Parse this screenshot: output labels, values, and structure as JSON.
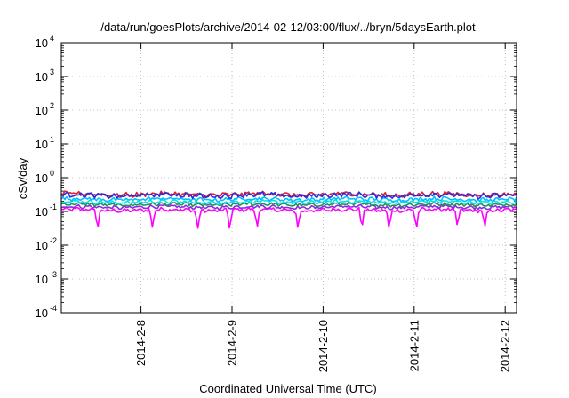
{
  "chart_data": {
    "type": "line",
    "title": "/data/run/goesPlots/archive/2014-02-12/03:00/flux/../bryn/5daysEarth.plot",
    "xlabel": "Coordinated Universal Time (UTC)",
    "ylabel": "cSv/day",
    "y_scale": "log",
    "ylim": [
      0.0001,
      10000
    ],
    "xlim": [
      "2014-02-07 03:00",
      "2014-02-12 03:00"
    ],
    "y_ticks": [
      {
        "value": 0.0001,
        "base": "10",
        "exp": "-4"
      },
      {
        "value": 0.001,
        "base": "10",
        "exp": "-3"
      },
      {
        "value": 0.01,
        "base": "10",
        "exp": "-2"
      },
      {
        "value": 0.1,
        "base": "10",
        "exp": "-1"
      },
      {
        "value": 1,
        "base": "10",
        "exp": "0"
      },
      {
        "value": 10,
        "base": "10",
        "exp": "1"
      },
      {
        "value": 100,
        "base": "10",
        "exp": "2"
      },
      {
        "value": 1000,
        "base": "10",
        "exp": "3"
      },
      {
        "value": 10000,
        "base": "10",
        "exp": "4"
      }
    ],
    "x_ticks": [
      {
        "value": "2014-02-08 00:00",
        "label": "2014-2-8"
      },
      {
        "value": "2014-02-09 00:00",
        "label": "2014-2-9"
      },
      {
        "value": "2014-02-10 00:00",
        "label": "2014-2-10"
      },
      {
        "value": "2014-02-11 00:00",
        "label": "2014-2-11"
      },
      {
        "value": "2014-02-12 00:00",
        "label": "2014-2-12"
      }
    ],
    "grid": true,
    "legend": "none",
    "series": [
      {
        "color": "#ff00ff",
        "level": 0.11,
        "amplitude": 0.14,
        "spike_depth": 0.55
      },
      {
        "color": "#8a2be2",
        "level": 0.135,
        "amplitude": 0.12,
        "spike_depth": 0.0
      },
      {
        "color": "#2e8b57",
        "level": 0.16,
        "amplitude": 0.12,
        "spike_depth": 0.0
      },
      {
        "color": "#00e5e5",
        "level": 0.19,
        "amplitude": 0.12,
        "spike_depth": 0.0
      },
      {
        "color": "#00bfff",
        "level": 0.23,
        "amplitude": 0.14,
        "spike_depth": 0.0
      },
      {
        "color": "#e0202a",
        "level": 0.32,
        "amplitude": 0.16,
        "spike_depth": 0.0
      },
      {
        "color": "#2a2ae0",
        "level": 0.3,
        "amplitude": 0.18,
        "spike_depth": 0.0
      }
    ]
  }
}
